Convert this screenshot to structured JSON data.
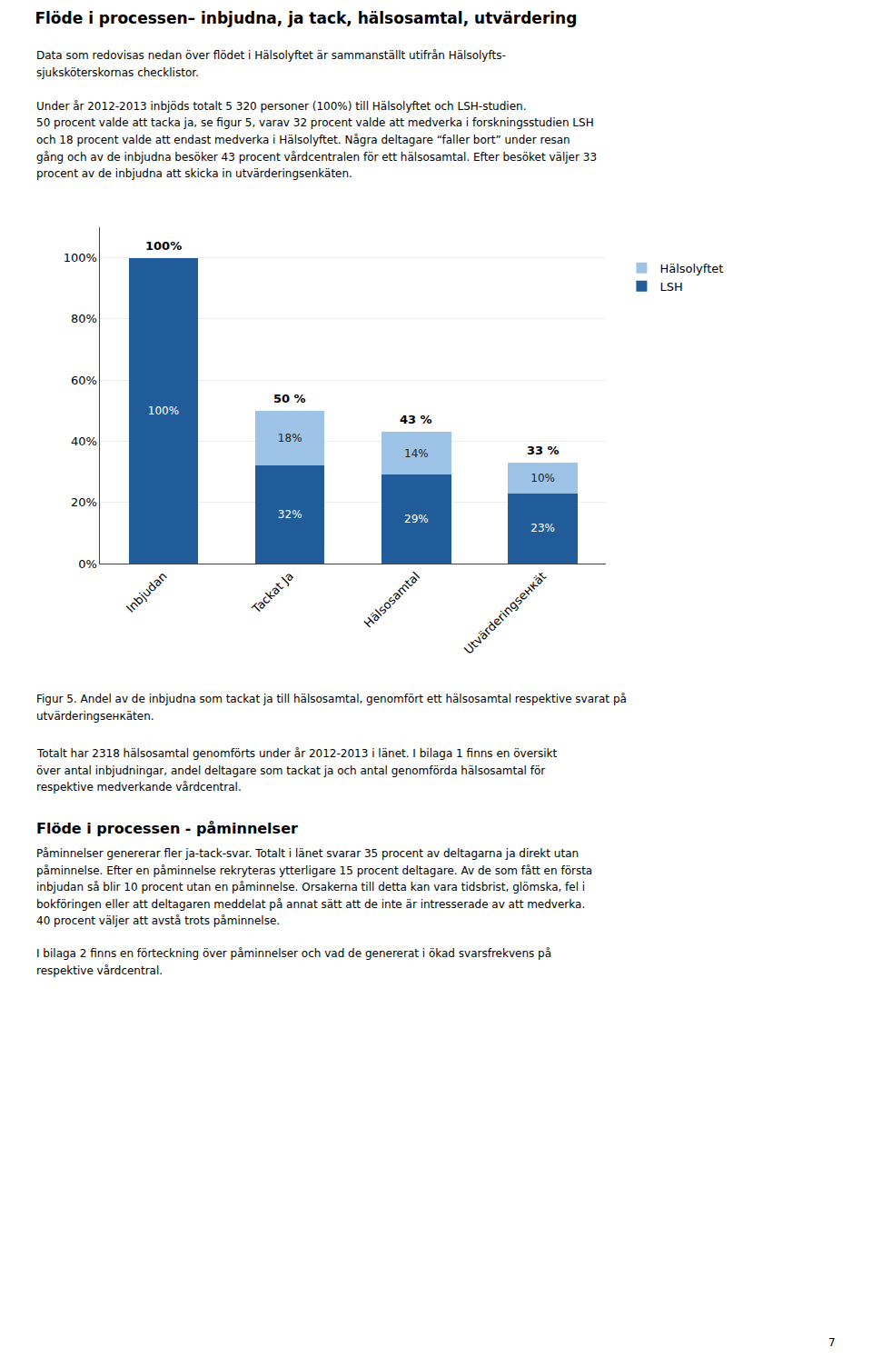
{
  "chart_data": {
    "type": "bar",
    "title": "Flöde i processen– inbjudna, ja tack, hälsosamtal, utvärdering",
    "categories": [
      "Inbjudan",
      "Tackat Ja",
      "Hälsosamtal",
      "Utvärderingsенкät"
    ],
    "series": [
      {
        "name": "LSH",
        "color": "#1F5C99",
        "values": [
          100,
          32,
          29,
          23
        ],
        "value_labels": [
          "100%",
          "32%",
          "29%",
          "23%"
        ]
      },
      {
        "name": "Hälsolyftet",
        "color": "#9DC3E6",
        "values": [
          0,
          18,
          14,
          10
        ],
        "value_labels": [
          null,
          "18%",
          "14%",
          "10%"
        ]
      }
    ],
    "totals": {
      "values": [
        100,
        50,
        43,
        33
      ],
      "value_labels": [
        "100%",
        "50 %",
        "43 %",
        "33 %"
      ]
    },
    "stacked": true,
    "data_labels": true,
    "ylim": [
      0,
      110
    ],
    "yticks": [
      {
        "value": 0,
        "label": "0%"
      },
      {
        "value": 20,
        "label": "20%"
      },
      {
        "value": 40,
        "label": "40%"
      },
      {
        "value": 60,
        "label": "60%"
      },
      {
        "value": 80,
        "label": "80%"
      },
      {
        "value": 100,
        "label": "100%"
      }
    ],
    "grid": true,
    "legend": "right",
    "annotations": [
      [
        "Data som redovisas nedan över flödet i Hälsolyftet är sammanställt utifrån Hälsolyfts-",
        "sjuksköterskornas checklistor."
      ],
      [
        "Under år 2012-2013 inbjöds totalt 5 320 personer (100%) till Hälsolyftet och LSH-studien.",
        "50 procent valde att tacka ja, se figur 5, varav 32 procent valde att medverka i forskningsstudien LSH",
        "och 18 procent valde att endast medverka i Hälsolyftet. Några deltagare “faller bort” under resan",
        "gång och av de inbjudna besöker 43 procent vårdcentralen för ett hälsosamtal. Efter besöket väljer 33",
        "procent av de inbjudna att skicka in utvärderingsenkäten."
      ],
      [
        "Figur 5. Andel av de inbjudna som tackat ja till hälsosamtal, genomfört ett hälsosamtal respektive svarat på",
        "utvärderingsенкäten."
      ],
      [
        "Totalt har 2318 hälsosamtal genomförts under år 2012-2013 i länet. I bilaga 1 finns en översikt",
        "över antal inbjudningar, andel deltagare som tackat ja och antal genomförda hälsosamtal för",
        "respektive medverkande vårdcentral."
      ],
      [
        "Flöde i processen - påminnelser"
      ],
      [
        "Påminnelser genererar fler ja-tack-svar. Totalt i länet svarar 35 procent av deltagarna ja direkt utan",
        "påminnelse. Efter en påminnelse rekryteras ytterligare 15 procent deltagare. Av de som fått en första",
        "inbjudan så blir 10 procent utan en påminnelse. Orsakerna till detta kan vara tidsbrist, glömska, fel i",
        "bokföringen eller att deltagaren meddelat på annat sätt att de inte är intresserade av att medverka.",
        "40 procent väljer att avstå trots påminnelse."
      ],
      [
        "I bilaga 2 finns en förteckning över påminnelser och vad de genererat i ökad svarsfrekvens på",
        "respektive vårdcentral."
      ],
      [
        "7"
      ]
    ]
  }
}
